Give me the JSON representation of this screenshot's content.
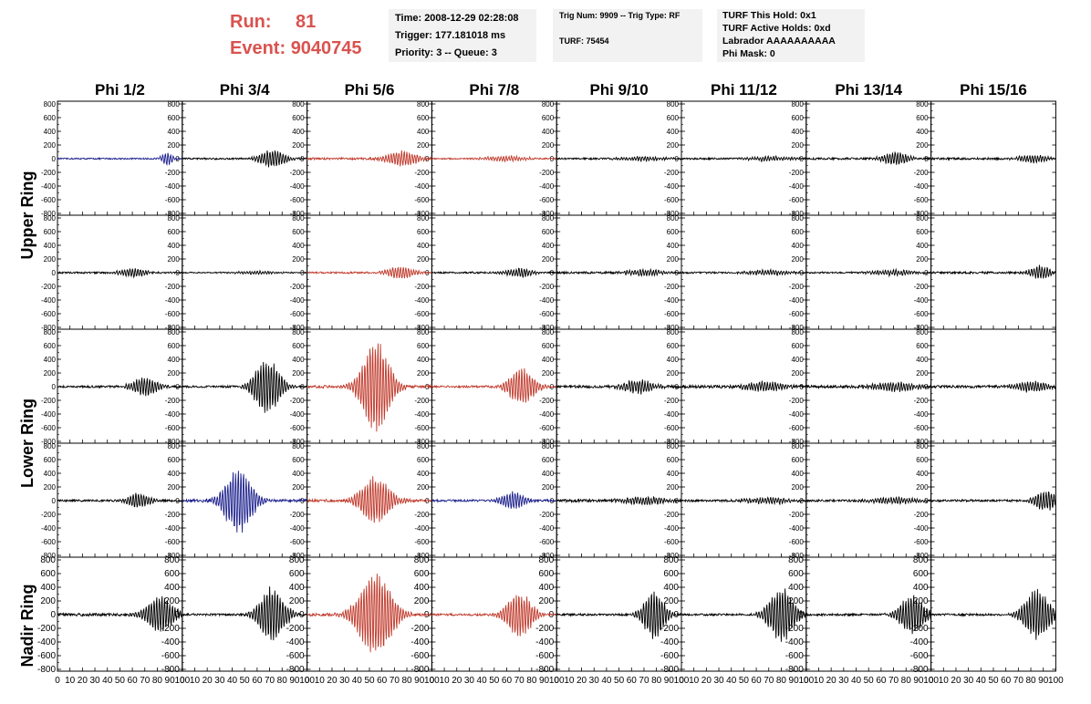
{
  "header": {
    "run_label": "Run:",
    "run_value": "81",
    "event_label": "Event:",
    "event_value": "9040745"
  },
  "info_box_1": {
    "time": "Time: 2008-12-29 02:28:08",
    "trigger": "Trigger: 177.181018 ms",
    "priority": "Priority: 3 -- Queue: 3"
  },
  "info_box_2": {
    "trig": "Trig Num: 9909 -- Trig Type: RF",
    "turf": "TURF: 75454"
  },
  "info_box_3": {
    "hold": "TURF This Hold: 0x1",
    "active": "TURF Active Holds: 0xd",
    "labrador": "Labrador AAAAAAAAAA",
    "phimask": "Phi Mask: 0"
  },
  "colors": {
    "header_red": "#d9534f",
    "red_trace": "#c0392b",
    "blue_trace": "#1c1f8c",
    "black_trace": "#000000"
  },
  "chart_data": {
    "type": "line",
    "columns": [
      "Phi 1/2",
      "Phi 3/4",
      "Phi 5/6",
      "Phi 7/8",
      "Phi 9/10",
      "Phi 11/12",
      "Phi 13/14",
      "Phi 15/16"
    ],
    "rows": [
      "Upper Ring",
      "Lower Ring",
      "Nadir Ring"
    ],
    "xlim": [
      0,
      100
    ],
    "x_ticks": [
      0,
      10,
      20,
      30,
      40,
      50,
      60,
      70,
      80,
      90,
      100
    ],
    "ylim": [
      -800,
      800
    ],
    "y_ticks": [
      800,
      600,
      400,
      200,
      0,
      -200,
      -400,
      -600,
      -800
    ],
    "panels": [
      [
        {
          "color": "blue",
          "peak": 100,
          "center": 88,
          "width": 5,
          "noise": 10
        },
        {
          "color": "black",
          "peak": 140,
          "center": 72,
          "width": 12,
          "noise": 12
        },
        {
          "color": "red",
          "peak": 120,
          "center": 76,
          "width": 14,
          "noise": 15
        },
        {
          "color": "red",
          "peak": 40,
          "center": 60,
          "width": 20,
          "noise": 10
        },
        {
          "color": "black",
          "peak": 35,
          "center": 70,
          "width": 20,
          "noise": 12
        },
        {
          "color": "black",
          "peak": 35,
          "center": 70,
          "width": 20,
          "noise": 12
        },
        {
          "color": "black",
          "peak": 100,
          "center": 72,
          "width": 12,
          "noise": 15
        },
        {
          "color": "black",
          "peak": 60,
          "center": 82,
          "width": 14,
          "noise": 15
        }
      ],
      [
        {
          "color": "black",
          "peak": 70,
          "center": 60,
          "width": 12,
          "noise": 12
        },
        {
          "color": "black",
          "peak": 25,
          "center": 60,
          "width": 20,
          "noise": 8
        },
        {
          "color": "red",
          "peak": 100,
          "center": 75,
          "width": 12,
          "noise": 12
        },
        {
          "color": "black",
          "peak": 70,
          "center": 70,
          "width": 12,
          "noise": 12
        },
        {
          "color": "black",
          "peak": 50,
          "center": 70,
          "width": 16,
          "noise": 15
        },
        {
          "color": "black",
          "peak": 40,
          "center": 70,
          "width": 20,
          "noise": 12
        },
        {
          "color": "black",
          "peak": 40,
          "center": 70,
          "width": 20,
          "noise": 12
        },
        {
          "color": "black",
          "peak": 100,
          "center": 88,
          "width": 10,
          "noise": 15
        }
      ],
      [
        {
          "color": "black",
          "peak": 140,
          "center": 70,
          "width": 12,
          "noise": 15
        },
        {
          "color": "black",
          "peak": 420,
          "center": 68,
          "width": 12,
          "noise": 15
        },
        {
          "color": "red",
          "peak": 720,
          "center": 55,
          "width": 13,
          "noise": 20
        },
        {
          "color": "red",
          "peak": 280,
          "center": 72,
          "width": 12,
          "noise": 15
        },
        {
          "color": "black",
          "peak": 110,
          "center": 65,
          "width": 14,
          "noise": 20
        },
        {
          "color": "black",
          "peak": 70,
          "center": 66,
          "width": 20,
          "noise": 20
        },
        {
          "color": "black",
          "peak": 70,
          "center": 70,
          "width": 20,
          "noise": 20
        },
        {
          "color": "black",
          "peak": 80,
          "center": 80,
          "width": 16,
          "noise": 18
        }
      ],
      [
        {
          "color": "black",
          "peak": 120,
          "center": 65,
          "width": 10,
          "noise": 15
        },
        {
          "color": "blue",
          "peak": 500,
          "center": 45,
          "width": 13,
          "noise": 20
        },
        {
          "color": "red",
          "peak": 360,
          "center": 55,
          "width": 14,
          "noise": 20
        },
        {
          "color": "blue",
          "peak": 140,
          "center": 65,
          "width": 10,
          "noise": 15
        },
        {
          "color": "black",
          "peak": 60,
          "center": 70,
          "width": 20,
          "noise": 20
        },
        {
          "color": "black",
          "peak": 50,
          "center": 70,
          "width": 20,
          "noise": 15
        },
        {
          "color": "black",
          "peak": 50,
          "center": 70,
          "width": 20,
          "noise": 15
        },
        {
          "color": "black",
          "peak": 160,
          "center": 92,
          "width": 10,
          "noise": 15
        }
      ],
      [
        {
          "color": "black",
          "peak": 280,
          "center": 82,
          "width": 13,
          "noise": 20
        },
        {
          "color": "black",
          "peak": 420,
          "center": 72,
          "width": 12,
          "noise": 15
        },
        {
          "color": "red",
          "peak": 640,
          "center": 55,
          "width": 16,
          "noise": 20
        },
        {
          "color": "red",
          "peak": 340,
          "center": 70,
          "width": 12,
          "noise": 15
        },
        {
          "color": "black",
          "peak": 380,
          "center": 78,
          "width": 10,
          "noise": 15
        },
        {
          "color": "black",
          "peak": 420,
          "center": 80,
          "width": 12,
          "noise": 15
        },
        {
          "color": "black",
          "peak": 300,
          "center": 85,
          "width": 12,
          "noise": 15
        },
        {
          "color": "black",
          "peak": 400,
          "center": 85,
          "width": 12,
          "noise": 15
        }
      ]
    ]
  }
}
